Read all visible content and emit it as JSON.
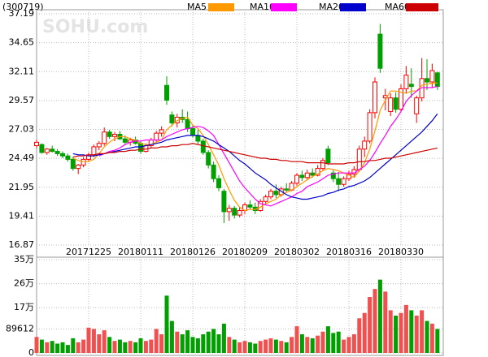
{
  "chart_data": {
    "type": "candlestick",
    "code": "(300719)",
    "watermark": "SOHU.com",
    "categories": [
      null,
      null,
      null,
      null,
      null,
      null,
      null,
      null,
      null,
      null,
      "20171225",
      null,
      null,
      null,
      null,
      null,
      null,
      null,
      null,
      null,
      "20180111",
      null,
      null,
      null,
      null,
      null,
      null,
      null,
      null,
      null,
      "20180126",
      null,
      null,
      null,
      null,
      null,
      null,
      null,
      null,
      null,
      "20180209",
      null,
      null,
      null,
      null,
      null,
      null,
      null,
      null,
      null,
      "20180302",
      null,
      null,
      null,
      null,
      null,
      null,
      null,
      null,
      null,
      "20180316",
      null,
      null,
      null,
      null,
      null,
      null,
      null,
      null,
      null,
      "20180330",
      null,
      null,
      null,
      null,
      null,
      null,
      null
    ],
    "open": [
      25.6,
      25.7,
      25.0,
      25.3,
      25.1,
      24.9,
      24.7,
      24.4,
      23.6,
      23.9,
      24.4,
      24.8,
      25.5,
      25.8,
      26.8,
      26.4,
      26.6,
      26.2,
      25.9,
      26.1,
      25.8,
      25.1,
      25.6,
      26.1,
      26.7,
      30.9,
      28.3,
      27.6,
      28.1,
      27.9,
      27.1,
      26.5,
      26.0,
      25.0,
      23.9,
      22.7,
      21.6,
      19.8,
      20.1,
      19.5,
      19.9,
      20.4,
      20.2,
      19.9,
      20.7,
      21.1,
      21.6,
      21.3,
      21.8,
      21.7,
      22.3,
      23.0,
      22.8,
      23.2,
      23.0,
      23.6,
      25.3,
      23.2,
      22.7,
      22.2,
      22.7,
      23.1,
      23.5,
      25.3,
      26.0,
      28.5,
      35.4,
      29.8,
      28.6,
      29.8,
      28.8,
      30.6,
      31.0,
      28.4,
      29.8,
      31.5,
      31.2,
      32.0
    ],
    "high": [
      26.1,
      25.8,
      25.4,
      25.6,
      25.3,
      25.1,
      24.9,
      24.6,
      24.0,
      24.6,
      25.0,
      25.7,
      26.0,
      27.2,
      27.0,
      26.8,
      26.9,
      26.5,
      26.3,
      26.4,
      26.0,
      25.8,
      26.3,
      26.9,
      27.3,
      31.7,
      28.6,
      28.4,
      28.8,
      28.6,
      27.4,
      27.0,
      26.2,
      25.2,
      24.2,
      23.0,
      21.8,
      20.4,
      20.3,
      20.2,
      20.6,
      20.8,
      20.6,
      20.9,
      21.3,
      21.8,
      22.2,
      22.0,
      22.3,
      22.5,
      23.2,
      23.4,
      23.5,
      23.6,
      23.9,
      24.5,
      25.6,
      23.5,
      23.3,
      22.9,
      23.4,
      23.8,
      25.6,
      26.4,
      28.8,
      31.6,
      36.3,
      30.6,
      30.2,
      30.3,
      31.0,
      32.6,
      32.4,
      30.0,
      33.3,
      33.2,
      32.8,
      32.1
    ],
    "low": [
      25.4,
      24.9,
      24.8,
      25.0,
      24.7,
      24.5,
      24.2,
      23.4,
      23.1,
      23.7,
      24.2,
      24.6,
      25.2,
      25.6,
      26.2,
      26.0,
      26.1,
      25.7,
      25.6,
      25.7,
      24.9,
      25.0,
      25.4,
      25.9,
      26.4,
      29.2,
      27.3,
      27.2,
      27.6,
      26.8,
      26.3,
      25.7,
      24.8,
      23.6,
      22.4,
      21.6,
      18.8,
      19.0,
      19.2,
      19.3,
      19.6,
      20.0,
      19.6,
      19.8,
      20.4,
      20.9,
      21.0,
      21.1,
      21.5,
      21.6,
      22.1,
      22.5,
      22.6,
      22.8,
      22.9,
      23.4,
      23.9,
      22.4,
      21.6,
      22.0,
      22.5,
      22.8,
      23.3,
      24.6,
      25.8,
      28.0,
      32.0,
      28.7,
      28.2,
      28.5,
      28.6,
      30.2,
      29.8,
      27.6,
      29.5,
      30.5,
      30.7,
      30.5
    ],
    "close": [
      25.9,
      25.0,
      25.3,
      25.1,
      24.9,
      24.7,
      24.4,
      23.6,
      23.9,
      24.4,
      24.8,
      25.5,
      25.8,
      26.8,
      26.4,
      26.6,
      26.2,
      25.9,
      26.1,
      25.8,
      25.1,
      25.6,
      26.1,
      26.7,
      27.0,
      29.6,
      27.6,
      28.1,
      27.9,
      27.1,
      26.5,
      26.0,
      25.0,
      23.9,
      22.7,
      21.9,
      19.8,
      20.1,
      19.5,
      19.9,
      20.4,
      20.2,
      19.9,
      20.7,
      21.1,
      21.6,
      21.3,
      21.8,
      21.7,
      22.3,
      23.0,
      22.8,
      23.2,
      23.0,
      23.6,
      24.3,
      24.1,
      22.7,
      22.2,
      22.7,
      23.1,
      23.5,
      25.3,
      26.0,
      28.5,
      31.2,
      32.4,
      30.0,
      29.8,
      28.8,
      30.6,
      31.8,
      30.8,
      29.8,
      31.5,
      31.2,
      32.2,
      30.8
    ],
    "volume": [
      60000,
      50000,
      40000,
      45000,
      35000,
      40000,
      30000,
      55000,
      40000,
      50000,
      95000,
      90000,
      70000,
      85000,
      60000,
      45000,
      50000,
      40000,
      45000,
      40000,
      55000,
      45000,
      50000,
      90000,
      70000,
      215000,
      120000,
      80000,
      70000,
      85000,
      60000,
      55000,
      70000,
      80000,
      90000,
      70000,
      110000,
      60000,
      50000,
      40000,
      45000,
      40000,
      35000,
      45000,
      50000,
      55000,
      50000,
      45000,
      40000,
      60000,
      100000,
      70000,
      60000,
      55000,
      65000,
      80000,
      100000,
      75000,
      80000,
      50000,
      60000,
      70000,
      130000,
      150000,
      210000,
      240000,
      275000,
      230000,
      160000,
      140000,
      150000,
      180000,
      160000,
      140000,
      160000,
      120000,
      110000,
      90000
    ],
    "series": [
      {
        "name": "MA5",
        "color": "#ff9900",
        "values": [
          null,
          null,
          null,
          null,
          null,
          null,
          null,
          24.5,
          24.3,
          24.2,
          24.2,
          24.4,
          24.9,
          25.5,
          25.9,
          26.2,
          26.4,
          26.4,
          26.2,
          26.1,
          25.8,
          25.7,
          25.7,
          25.9,
          26.1,
          27.0,
          27.4,
          27.8,
          28.0,
          28.1,
          27.4,
          27.1,
          26.5,
          25.7,
          24.8,
          23.9,
          22.7,
          21.7,
          20.8,
          20.2,
          19.9,
          20.0,
          20.0,
          20.2,
          20.5,
          20.7,
          20.9,
          21.3,
          21.5,
          21.7,
          22.0,
          22.3,
          22.6,
          22.9,
          23.1,
          23.4,
          23.6,
          23.5,
          23.4,
          23.2,
          23.0,
          22.8,
          23.4,
          24.1,
          25.3,
          26.9,
          28.7,
          29.6,
          30.4,
          30.4,
          30.3,
          30.2,
          30.4,
          30.4,
          30.9,
          31.0,
          31.1,
          31.1
        ]
      },
      {
        "name": "MA10",
        "color": "#ff00ff",
        "values": [
          null,
          null,
          null,
          null,
          null,
          null,
          null,
          null,
          null,
          null,
          null,
          null,
          24.7,
          24.9,
          25.1,
          25.2,
          25.4,
          25.7,
          25.9,
          26.0,
          26.0,
          26.1,
          26.1,
          26.1,
          26.1,
          26.4,
          26.6,
          26.8,
          27.0,
          27.1,
          27.2,
          27.3,
          27.2,
          26.9,
          26.5,
          25.7,
          24.9,
          24.1,
          23.3,
          22.5,
          21.9,
          21.4,
          20.9,
          20.5,
          20.4,
          20.3,
          20.5,
          20.7,
          20.9,
          21.1,
          21.4,
          21.6,
          22.0,
          22.2,
          22.4,
          22.7,
          23.0,
          23.1,
          23.2,
          23.2,
          23.2,
          23.2,
          23.5,
          23.8,
          24.3,
          25.0,
          25.8,
          26.5,
          27.3,
          27.9,
          28.6,
          29.5,
          30.0,
          30.4,
          30.7,
          30.7,
          30.7,
          30.8
        ]
      },
      {
        "name": "MA20",
        "color": "#0000cc",
        "values": [
          null,
          null,
          null,
          null,
          null,
          null,
          null,
          24.9,
          24.8,
          24.8,
          24.7,
          24.7,
          24.8,
          24.9,
          25.0,
          25.1,
          25.2,
          25.3,
          25.4,
          25.5,
          25.5,
          25.6,
          25.7,
          25.8,
          25.9,
          26.1,
          26.2,
          26.3,
          26.4,
          26.5,
          26.5,
          26.5,
          26.4,
          26.2,
          26.0,
          25.7,
          25.4,
          25.1,
          24.7,
          24.3,
          24.0,
          23.6,
          23.2,
          22.9,
          22.6,
          22.2,
          21.9,
          21.6,
          21.3,
          21.1,
          21.0,
          20.9,
          20.9,
          21.0,
          21.1,
          21.2,
          21.4,
          21.5,
          21.7,
          21.8,
          22.0,
          22.1,
          22.3,
          22.5,
          22.8,
          23.2,
          23.6,
          24.0,
          24.4,
          24.8,
          25.2,
          25.6,
          26.0,
          26.4,
          26.8,
          27.3,
          27.8,
          28.4
        ]
      },
      {
        "name": "MA60",
        "color": "#cc0000",
        "values": [
          null,
          null,
          null,
          null,
          null,
          null,
          null,
          24.6,
          24.7,
          24.7,
          24.8,
          24.8,
          24.9,
          24.9,
          25.0,
          25.0,
          25.1,
          25.1,
          25.2,
          25.2,
          25.3,
          25.3,
          25.4,
          25.4,
          25.5,
          25.5,
          25.6,
          25.6,
          25.7,
          25.7,
          25.8,
          25.7,
          25.6,
          25.5,
          25.4,
          25.3,
          25.2,
          25.1,
          25.0,
          24.9,
          24.8,
          24.7,
          24.6,
          24.5,
          24.5,
          24.4,
          24.4,
          24.3,
          24.3,
          24.2,
          24.2,
          24.2,
          24.1,
          24.1,
          24.1,
          24.1,
          24.0,
          24.0,
          24.0,
          24.0,
          24.1,
          24.1,
          24.2,
          24.2,
          24.3,
          24.3,
          24.4,
          24.5,
          24.5,
          24.6,
          24.7,
          24.8,
          24.9,
          25.0,
          25.1,
          25.2,
          25.3,
          25.4
        ]
      }
    ],
    "up_color": "#ff0000",
    "down_color": "#00a000",
    "ylim": [
      16.87,
      37.19
    ],
    "yticks": [
      16.87,
      19.41,
      21.95,
      24.49,
      27.03,
      29.57,
      32.11,
      34.65,
      37.19
    ],
    "volume_ylim": [
      0,
      350000
    ],
    "volume_yticks": [
      0,
      89612,
      {
        "value": 170000,
        "label": "17万"
      },
      {
        "value": 260000,
        "label": "26万"
      },
      {
        "value": 350000,
        "label": "35万"
      }
    ],
    "grid": true
  }
}
